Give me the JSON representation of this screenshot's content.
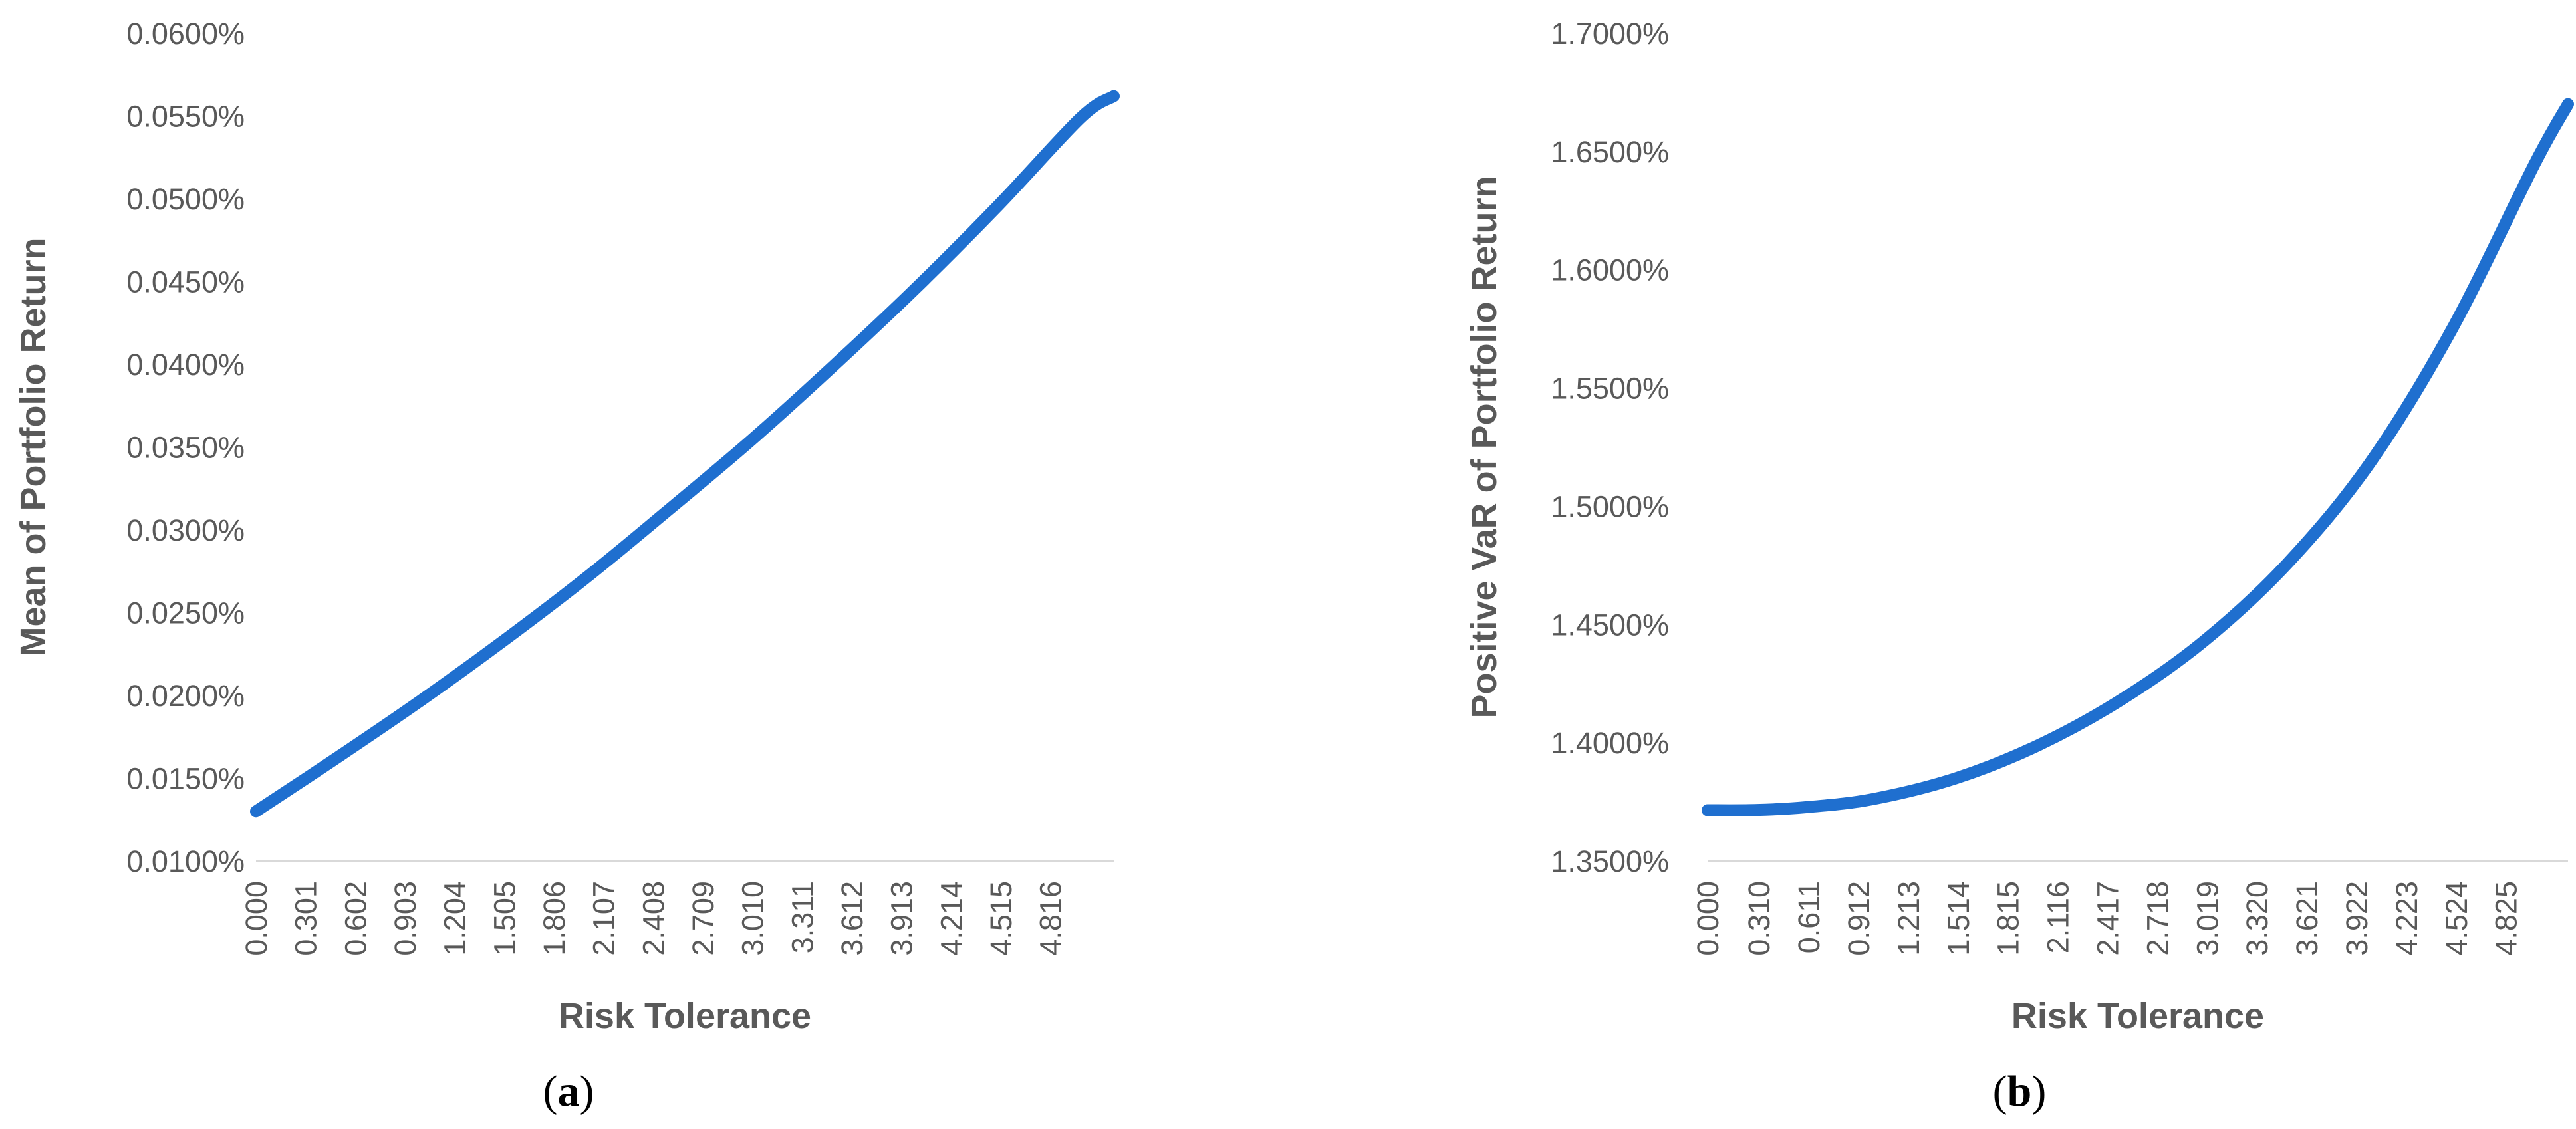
{
  "figure": {
    "panels": [
      {
        "letter": "a",
        "open": "(",
        "close": ")"
      },
      {
        "letter": "b",
        "open": "(",
        "close": ")"
      }
    ]
  },
  "colors": {
    "series": "#1f6fcf",
    "axis": "#d9d9d9",
    "text": "#595959"
  },
  "chart_data": [
    {
      "type": "line",
      "panel": "a",
      "title": "",
      "xlabel": "Risk Tolerance",
      "ylabel": "Mean of Portfolio Return",
      "x_tick_labels": [
        "0.000",
        "0.301",
        "0.602",
        "0.903",
        "1.204",
        "1.505",
        "1.806",
        "2.107",
        "2.408",
        "2.709",
        "3.010",
        "3.311",
        "3.612",
        "3.913",
        "4.214",
        "4.515",
        "4.816"
      ],
      "y_tick_labels": [
        "0.0100%",
        "0.0150%",
        "0.0200%",
        "0.0250%",
        "0.0300%",
        "0.0350%",
        "0.0400%",
        "0.0450%",
        "0.0500%",
        "0.0550%",
        "0.0600%"
      ],
      "xlim": [
        0,
        5.2
      ],
      "ylim": [
        0.01,
        0.06
      ],
      "y_unit": "%",
      "grid": false,
      "series": [
        {
          "x": [
            0.0,
            0.5,
            1.0,
            1.5,
            2.0,
            2.5,
            3.0,
            3.5,
            4.0,
            4.5,
            5.0,
            5.2
          ],
          "y": [
            0.013,
            0.0163,
            0.0197,
            0.0233,
            0.0271,
            0.0312,
            0.0354,
            0.0399,
            0.0446,
            0.0496,
            0.0549,
            0.0562
          ]
        }
      ]
    },
    {
      "type": "line",
      "panel": "b",
      "title": "",
      "xlabel": "Risk Tolerance",
      "ylabel": "Positive VaR of Portfolio Return",
      "x_tick_labels": [
        "0.000",
        "0.310",
        "0.611",
        "0.912",
        "1.213",
        "1.514",
        "1.815",
        "2.116",
        "2.417",
        "2.718",
        "3.019",
        "3.320",
        "3.621",
        "3.922",
        "4.223",
        "4.524",
        "4.825"
      ],
      "y_tick_labels": [
        "1.3500%",
        "1.4000%",
        "1.4500%",
        "1.5000%",
        "1.5500%",
        "1.6000%",
        "1.6500%",
        "1.7000%"
      ],
      "xlim": [
        0,
        5.2
      ],
      "ylim": [
        1.35,
        1.7
      ],
      "y_unit": "%",
      "grid": false,
      "series": [
        {
          "x": [
            0.0,
            0.3,
            0.6,
            1.0,
            1.5,
            2.0,
            2.5,
            3.0,
            3.5,
            4.0,
            4.5,
            5.0,
            5.2
          ],
          "y": [
            1.3715,
            1.3716,
            1.3728,
            1.3762,
            1.385,
            1.399,
            1.4182,
            1.443,
            1.4755,
            1.518,
            1.575,
            1.645,
            1.67
          ]
        }
      ]
    }
  ]
}
